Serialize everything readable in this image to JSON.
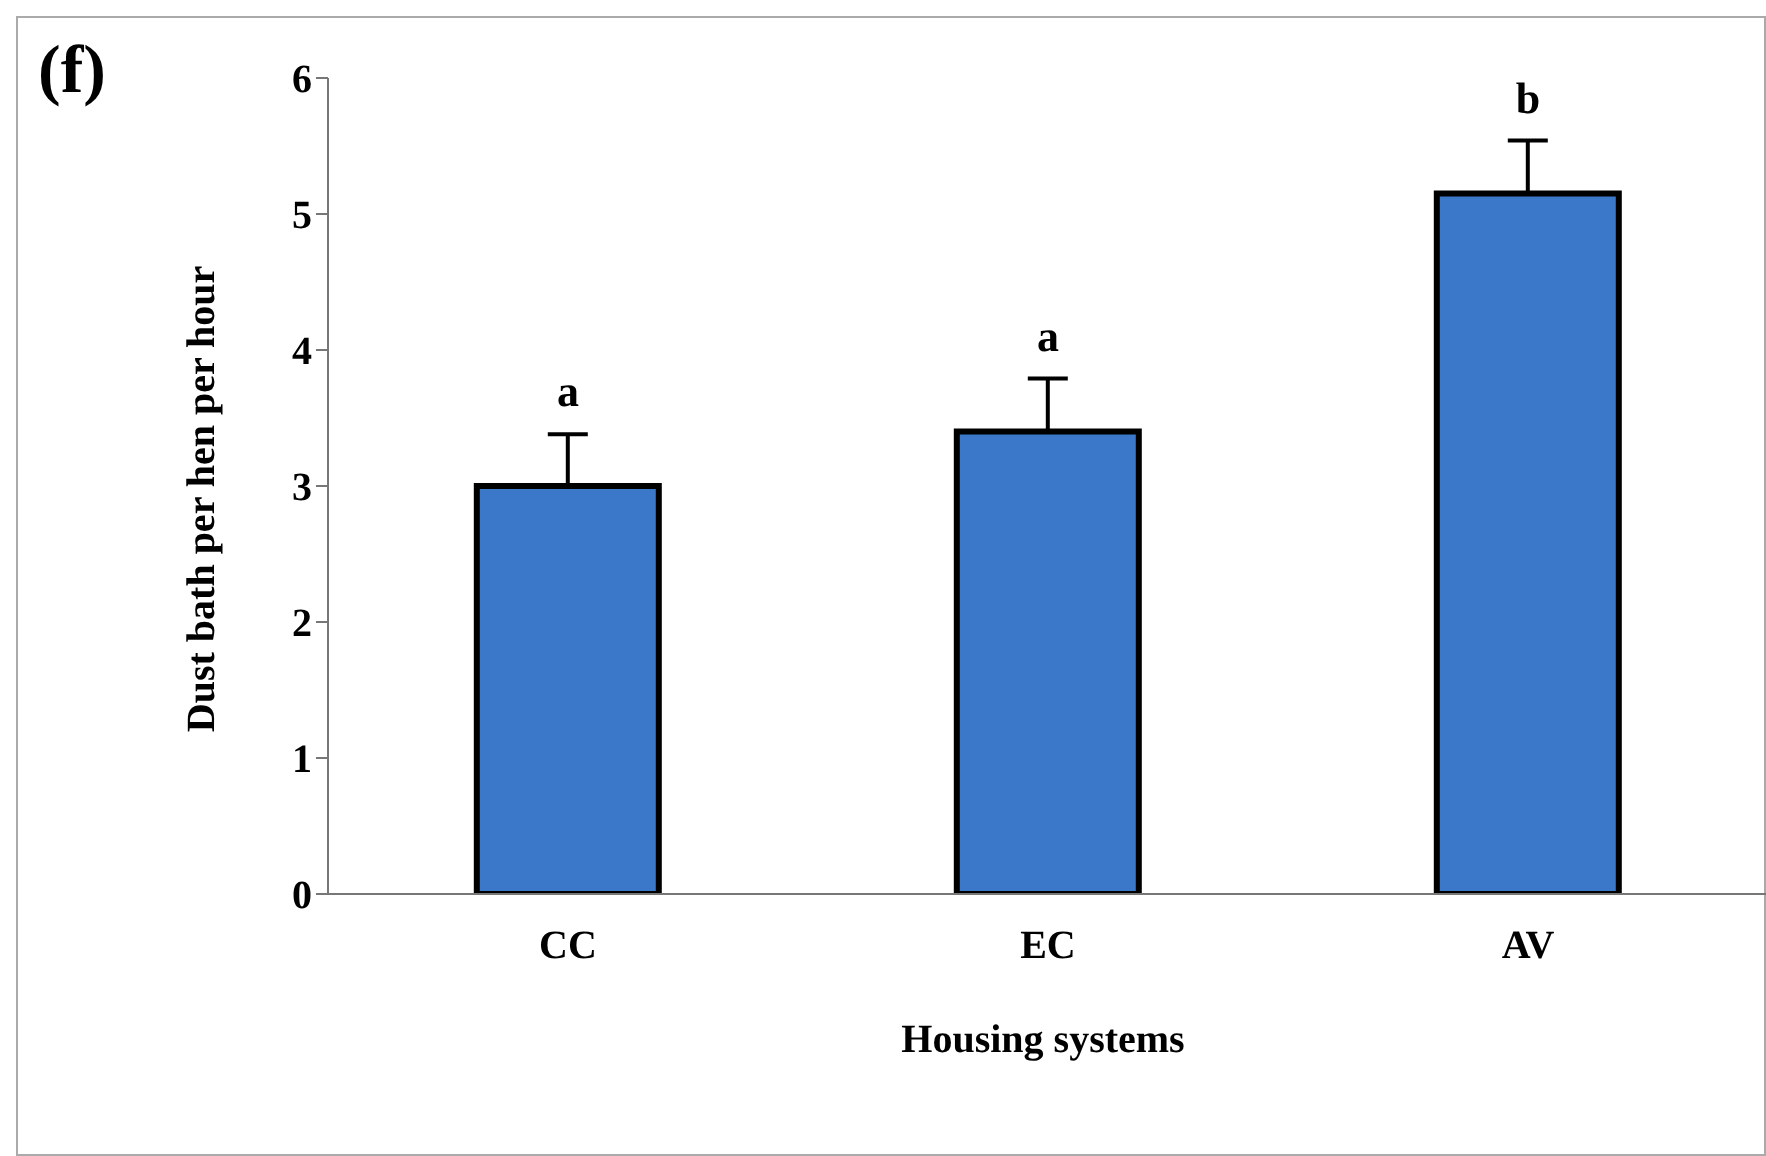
{
  "chart_data": {
    "type": "bar",
    "xlabel": "Housing systems",
    "ylabel": "Dust bath per hen per hour",
    "categories": [
      "CC",
      "EC",
      "AV"
    ],
    "values": [
      3.0,
      3.4,
      5.15
    ],
    "errors": [
      [
        3.0,
        3.38
      ],
      [
        3.4,
        3.79
      ],
      [
        5.15,
        5.54
      ]
    ],
    "color": "#3b78c9",
    "ylim": [
      0,
      6
    ],
    "yticks": [
      0,
      1,
      2,
      3,
      4,
      5,
      6
    ],
    "grid": false,
    "legend": false,
    "annotations": [
      "(f)",
      {
        "text": "a",
        "x": "CC",
        "y": 3.38
      },
      {
        "text": "a",
        "x": "EC",
        "y": 3.79
      },
      {
        "text": "b",
        "x": "AV",
        "y": 5.54
      }
    ]
  }
}
